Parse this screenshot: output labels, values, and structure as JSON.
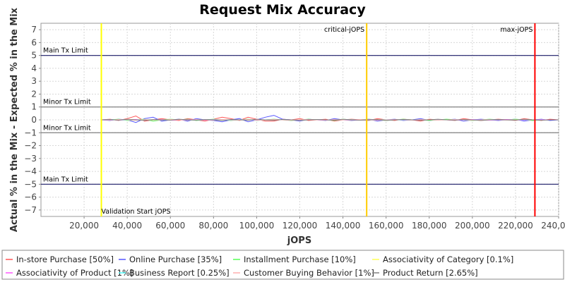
{
  "chart_data": {
    "type": "line",
    "title": "Request Mix Accuracy",
    "xlabel": "jOPS",
    "ylabel": "Actual % in the Mix - Expected % in the Mix",
    "xlim": [
      0,
      240000
    ],
    "ylim": [
      -7.5,
      7.5
    ],
    "x_ticks": [
      20000,
      40000,
      60000,
      80000,
      100000,
      120000,
      140000,
      160000,
      180000,
      200000,
      220000,
      240000
    ],
    "x_tick_labels": [
      "20,000",
      "40,000",
      "60,000",
      "80,000",
      "100,000",
      "120,000",
      "140,000",
      "160,000",
      "180,000",
      "200,000",
      "220,000",
      "240,000"
    ],
    "y_ticks": [
      -7,
      -6,
      -5,
      -4,
      -3,
      -2,
      -1,
      0,
      1,
      2,
      3,
      4,
      5,
      6,
      7
    ],
    "y_tick_labels": [
      "−7",
      "−6",
      "−5",
      "−4",
      "−3",
      "−2",
      "−1",
      "0",
      "1",
      "2",
      "3",
      "4",
      "5",
      "6",
      "7"
    ],
    "grid": true,
    "horizontal_markers": [
      {
        "y": 5,
        "label": "Main Tx Limit",
        "color": "#1a1a66",
        "label_pos": "above"
      },
      {
        "y": 1,
        "label": "Minor Tx Limit",
        "color": "#808080",
        "label_pos": "above"
      },
      {
        "y": -1,
        "label": "Minor Tx Limit",
        "color": "#808080",
        "label_pos": "above"
      },
      {
        "y": -5,
        "label": "Main Tx Limit",
        "color": "#1a1a66",
        "label_pos": "above"
      }
    ],
    "vertical_markers": [
      {
        "x": 28000,
        "label": "Validation Start jOPS",
        "color": "#ffff00",
        "label_pos": "bottom"
      },
      {
        "x": 151000,
        "label": "critical-jOPS",
        "color": "#ffcc00",
        "label_pos": "top"
      },
      {
        "x": 229000,
        "label": "max-jOPS",
        "color": "#ff0000",
        "label_pos": "top"
      }
    ],
    "x": [
      28000,
      32000,
      36000,
      40000,
      44000,
      48000,
      52000,
      56000,
      60000,
      64000,
      68000,
      72000,
      76000,
      80000,
      84000,
      88000,
      92000,
      96000,
      100000,
      104000,
      108000,
      112000,
      116000,
      120000,
      124000,
      128000,
      132000,
      136000,
      140000,
      144000,
      148000,
      152000,
      156000,
      160000,
      164000,
      168000,
      172000,
      176000,
      180000,
      184000,
      188000,
      192000,
      196000,
      200000,
      204000,
      208000,
      212000,
      216000,
      220000,
      224000,
      228000,
      232000,
      236000,
      240000
    ],
    "series": [
      {
        "name": "In-store Purchase [50%]",
        "color": "#ff5555",
        "values": [
          0,
          0.05,
          -0.05,
          0.1,
          0.3,
          -0.1,
          0,
          0.1,
          0,
          -0.05,
          0.1,
          0,
          -0.1,
          0.05,
          0.2,
          0.1,
          -0.05,
          0.2,
          0.05,
          -0.1,
          -0.1,
          0.05,
          0,
          0.1,
          -0.05,
          0,
          0.05,
          -0.1,
          0,
          0.05,
          0,
          -0.05,
          0.1,
          0,
          -0.05,
          0.05,
          0,
          -0.1,
          0.05,
          0,
          0,
          -0.05,
          0.1,
          0,
          -0.05,
          0,
          0.05,
          0,
          -0.05,
          0.1,
          0,
          -0.05,
          0.05,
          0
        ]
      },
      {
        "name": "Online Purchase [35%]",
        "color": "#5555ff",
        "values": [
          0,
          -0.05,
          0.05,
          0,
          -0.2,
          0.1,
          0.2,
          -0.1,
          0,
          0.05,
          -0.1,
          0.1,
          0,
          -0.05,
          -0.15,
          0,
          0.1,
          -0.15,
          0,
          0.2,
          0.35,
          0.05,
          0,
          -0.1,
          0.05,
          0,
          -0.05,
          0.1,
          0,
          -0.05,
          0,
          0.05,
          -0.1,
          0,
          0.05,
          -0.05,
          0,
          0.1,
          -0.05,
          0,
          0,
          0.05,
          -0.1,
          0,
          0.05,
          0,
          -0.05,
          0,
          0.05,
          -0.1,
          0,
          0.05,
          -0.05,
          0
        ]
      },
      {
        "name": "Installment Purchase [10%]",
        "color": "#55ff55",
        "values": [
          0,
          0,
          0.05,
          -0.05,
          0,
          0.05,
          -0.1,
          0,
          0.05,
          0,
          0.05,
          -0.05,
          0,
          0.05,
          0,
          -0.05,
          0,
          0.05,
          -0.05,
          0,
          0.05,
          0,
          -0.05,
          0,
          0.05,
          0,
          0,
          -0.05,
          0.05,
          0,
          0,
          0.05,
          0,
          -0.05,
          0,
          0.05,
          0,
          0,
          -0.05,
          0,
          0.05,
          0,
          0,
          -0.05,
          0,
          0.05,
          0,
          0,
          0.05,
          0,
          -0.05,
          0,
          0,
          0
        ]
      },
      {
        "name": "Associativity of Category [0.1%]",
        "color": "#ffff55",
        "values": [
          0,
          0,
          0,
          0,
          0,
          0,
          0,
          0,
          0,
          0,
          0,
          0,
          0,
          0,
          0,
          0,
          0,
          0,
          0,
          0,
          0,
          0,
          0,
          0,
          0,
          0,
          0,
          0,
          0,
          0,
          0,
          0,
          0,
          0,
          0,
          0,
          0,
          0,
          0,
          0,
          0,
          0,
          0,
          0,
          0,
          0,
          0,
          0,
          0,
          0,
          0,
          0,
          0,
          0
        ]
      },
      {
        "name": "Associativity of Product [1%]",
        "color": "#ff55ff",
        "values": [
          0,
          0.02,
          -0.02,
          0,
          0.03,
          -0.02,
          0,
          0.02,
          -0.03,
          0,
          0.02,
          0,
          -0.02,
          0.03,
          0,
          -0.02,
          0,
          0.02,
          -0.03,
          0,
          0.02,
          0,
          -0.02,
          0,
          0.03,
          0,
          -0.02,
          0,
          0.02,
          0,
          -0.02,
          0.03,
          0,
          -0.02,
          0,
          0.02,
          0,
          -0.02,
          0,
          0.03,
          0,
          -0.02,
          0,
          0.02,
          0,
          -0.02,
          0,
          0.03,
          0,
          -0.02,
          0,
          0.02,
          0,
          0
        ]
      },
      {
        "name": "Business Report [0.25%]",
        "color": "#55ffff",
        "values": [
          0,
          0.01,
          0,
          -0.01,
          0,
          0.01,
          0,
          -0.01,
          0,
          0.01,
          0,
          -0.01,
          0,
          0.01,
          0,
          -0.01,
          0,
          0.01,
          0,
          -0.01,
          0,
          0.01,
          0,
          -0.01,
          0,
          0.01,
          0,
          -0.01,
          0,
          0.01,
          0,
          -0.01,
          0,
          0.01,
          0,
          -0.01,
          0,
          0.01,
          0,
          -0.01,
          0,
          0.01,
          0,
          -0.01,
          0,
          0.01,
          0,
          -0.01,
          0,
          0.01,
          0,
          -0.01,
          0,
          0
        ]
      },
      {
        "name": "Customer Buying Behavior [1%]",
        "color": "#ffafaf",
        "values": [
          0,
          -0.02,
          0.03,
          0,
          -0.03,
          0.02,
          0,
          -0.02,
          0.03,
          0,
          -0.02,
          0.02,
          0,
          -0.03,
          0.02,
          0,
          -0.02,
          0.03,
          0,
          -0.02,
          0.02,
          0,
          -0.03,
          0,
          0.02,
          0,
          -0.02,
          0.03,
          0,
          -0.02,
          0.02,
          0,
          -0.03,
          0,
          0.02,
          0,
          -0.02,
          0.03,
          0,
          -0.02,
          0,
          0.02,
          0,
          -0.03,
          0,
          0.02,
          0,
          -0.02,
          0,
          0.03,
          0,
          -0.02,
          0,
          0
        ]
      },
      {
        "name": "Product Return [2.65%]",
        "color": "#808080",
        "values": [
          0,
          0.03,
          -0.03,
          0.05,
          0,
          -0.05,
          0.03,
          0,
          -0.03,
          0.05,
          0,
          -0.03,
          0.03,
          0,
          -0.05,
          0.03,
          0,
          -0.03,
          0.05,
          0,
          -0.03,
          0.03,
          0,
          -0.05,
          0,
          0.03,
          0,
          -0.03,
          0.05,
          0,
          -0.03,
          0,
          0.03,
          -0.05,
          0,
          0.03,
          0,
          -0.03,
          0,
          0.05,
          0,
          -0.03,
          0.03,
          0,
          -0.05,
          0,
          0.03,
          0,
          -0.03,
          0.05,
          0,
          -0.03,
          0,
          0
        ]
      }
    ],
    "legend_position": "bottom"
  }
}
